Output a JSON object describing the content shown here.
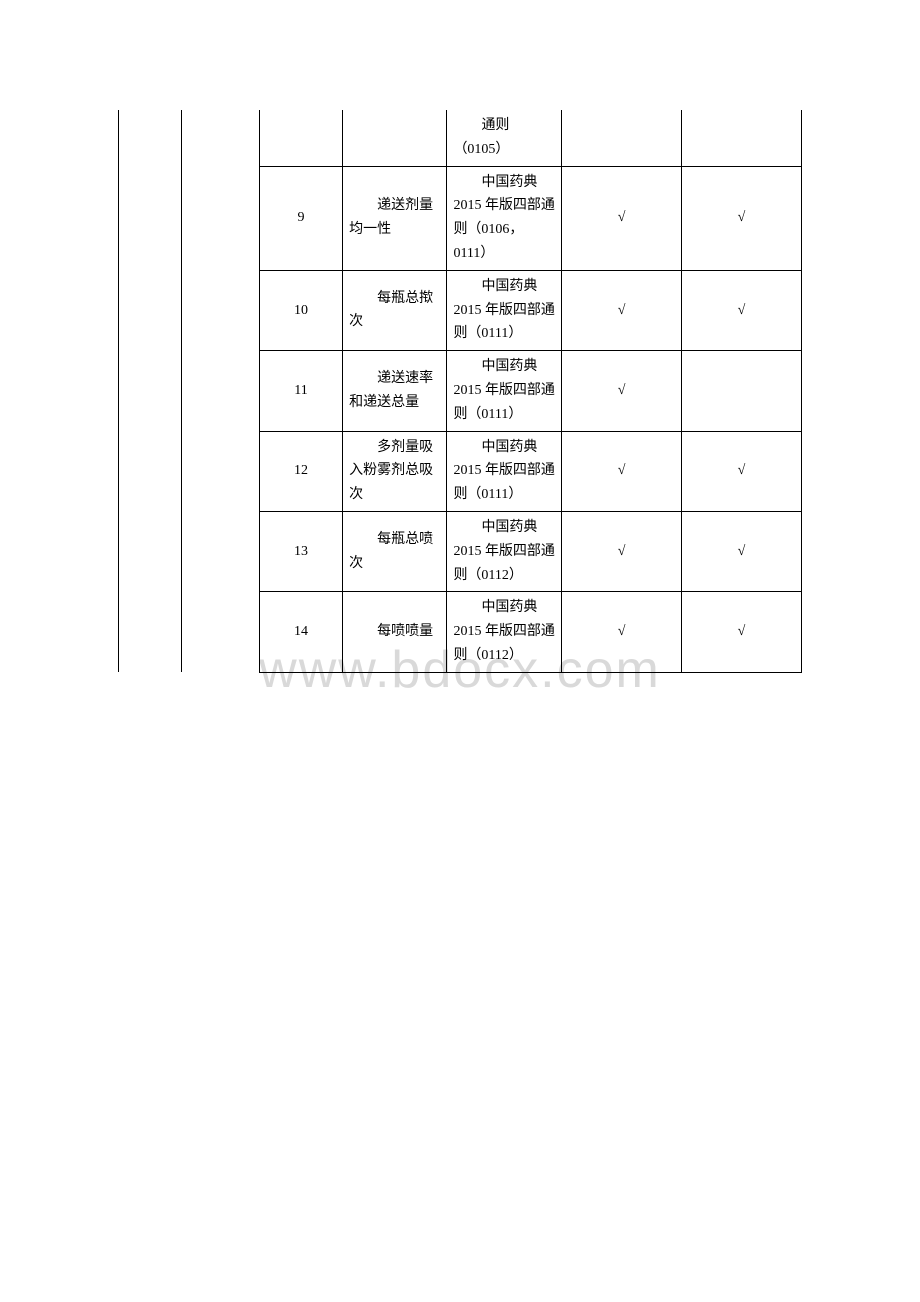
{
  "watermark": "www.bdocx.com",
  "table": {
    "border_color": "#000000",
    "text_color": "#000000",
    "background_color": "#ffffff",
    "font_size": 14,
    "check_mark": "√",
    "rows": [
      {
        "num": "",
        "item": "",
        "ref": "通则（0105）",
        "col6": "",
        "col7": "",
        "first": true
      },
      {
        "num": "9",
        "item": "递送剂量均一性",
        "ref": "中国药典2015 年版四部通则（0106，0111）",
        "col6": "√",
        "col7": "√"
      },
      {
        "num": "10",
        "item": "每瓶总揿次",
        "ref": "中国药典2015 年版四部通则（0111）",
        "col6": "√",
        "col7": "√"
      },
      {
        "num": "11",
        "item": "递送速率和递送总量",
        "ref": "中国药典2015 年版四部通则（0111）",
        "col6": "√",
        "col7": ""
      },
      {
        "num": "12",
        "item": "多剂量吸入粉雾剂总吸次",
        "ref": "中国药典2015 年版四部通则（0111）",
        "col6": "√",
        "col7": "√"
      },
      {
        "num": "13",
        "item": "每瓶总喷次",
        "ref": "中国药典2015 年版四部通则（0112）",
        "col6": "√",
        "col7": "√"
      },
      {
        "num": "14",
        "item": "每喷喷量",
        "ref": "中国药典2015 年版四部通则（0112）",
        "col6": "√",
        "col7": "√"
      }
    ]
  }
}
